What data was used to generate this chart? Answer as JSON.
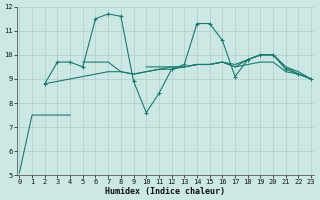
{
  "xlabel": "Humidex (Indice chaleur)",
  "x": [
    0,
    1,
    2,
    3,
    4,
    5,
    6,
    7,
    8,
    9,
    10,
    11,
    12,
    13,
    14,
    15,
    16,
    17,
    18,
    19,
    20,
    21,
    22,
    23
  ],
  "line1": [
    5.1,
    7.5,
    7.5,
    7.5,
    7.5,
    null,
    null,
    null,
    null,
    null,
    null,
    null,
    null,
    null,
    null,
    null,
    null,
    null,
    null,
    null,
    null,
    null,
    null,
    null
  ],
  "line2": [
    null,
    null,
    8.8,
    9.7,
    9.7,
    9.5,
    11.5,
    11.7,
    11.6,
    8.9,
    7.6,
    8.4,
    9.4,
    9.6,
    11.3,
    11.3,
    10.6,
    9.1,
    9.8,
    10.0,
    10.0,
    9.4,
    9.2,
    9.0
  ],
  "line3": [
    null,
    null,
    8.8,
    8.9,
    9.0,
    9.1,
    9.2,
    9.3,
    9.3,
    9.2,
    9.3,
    9.4,
    9.4,
    9.5,
    9.6,
    9.6,
    9.7,
    9.5,
    9.6,
    9.7,
    9.7,
    9.3,
    9.2,
    9.0
  ],
  "line4": [
    null,
    null,
    null,
    null,
    null,
    9.7,
    9.7,
    9.7,
    9.3,
    9.2,
    9.3,
    9.4,
    9.5,
    9.5,
    9.6,
    9.6,
    9.7,
    9.5,
    9.8,
    10.0,
    10.0,
    9.5,
    9.3,
    9.0
  ],
  "line5": [
    null,
    null,
    null,
    null,
    null,
    null,
    null,
    null,
    null,
    null,
    9.5,
    9.5,
    9.5,
    9.5,
    9.6,
    9.6,
    9.7,
    9.6,
    9.8,
    10.0,
    10.0,
    9.5,
    9.2,
    9.0
  ],
  "bg_color": "#cce8e4",
  "grid_color": "#b0ccc8",
  "line_color": "#1a7a6e",
  "ylim": [
    5,
    12
  ],
  "xlim": [
    -0.2,
    23.2
  ],
  "yticks": [
    5,
    6,
    7,
    8,
    9,
    10,
    11,
    12
  ],
  "xticks": [
    0,
    1,
    2,
    3,
    4,
    5,
    6,
    7,
    8,
    9,
    10,
    11,
    12,
    13,
    14,
    15,
    16,
    17,
    18,
    19,
    20,
    21,
    22,
    23
  ]
}
